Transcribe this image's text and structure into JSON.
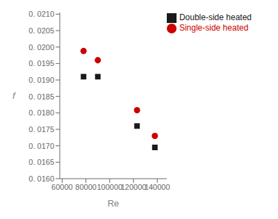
{
  "chart_data": {
    "type": "scatter",
    "xlabel": "Re",
    "ylabel": "f",
    "x": [
      78000,
      90000,
      123000,
      138000
    ],
    "series": [
      {
        "name": "Double-side heated",
        "color": "#1a1a1a",
        "marker": "square",
        "values": [
          0.0191,
          0.0191,
          0.0176,
          0.01695
        ]
      },
      {
        "name": "Single-side heated",
        "color": "#cc0000",
        "marker": "circle",
        "values": [
          0.01988,
          0.0196,
          0.01808,
          0.0173
        ]
      }
    ],
    "xlim": [
      58000,
      148000
    ],
    "ylim": [
      0.016,
      0.02105
    ],
    "xticks": [
      60000,
      80000,
      100000,
      120000,
      140000
    ],
    "yticks": [
      {
        "value": 0.016,
        "label": "0. 0160"
      },
      {
        "value": 0.0165,
        "label": "0. 0165"
      },
      {
        "value": 0.017,
        "label": "0. 0170"
      },
      {
        "value": 0.0175,
        "label": "0. 0175"
      },
      {
        "value": 0.018,
        "label": "0. 0180"
      },
      {
        "value": 0.0185,
        "label": "0. 0185"
      },
      {
        "value": 0.019,
        "label": "0. 0190"
      },
      {
        "value": 0.0195,
        "label": "0. 0195"
      },
      {
        "value": 0.02,
        "label": "0. 0200"
      },
      {
        "value": 0.0205,
        "label": "0. 0205"
      },
      {
        "value": 0.021,
        "label": "0. 0210"
      }
    ],
    "grid": false,
    "legend": "upper right"
  }
}
